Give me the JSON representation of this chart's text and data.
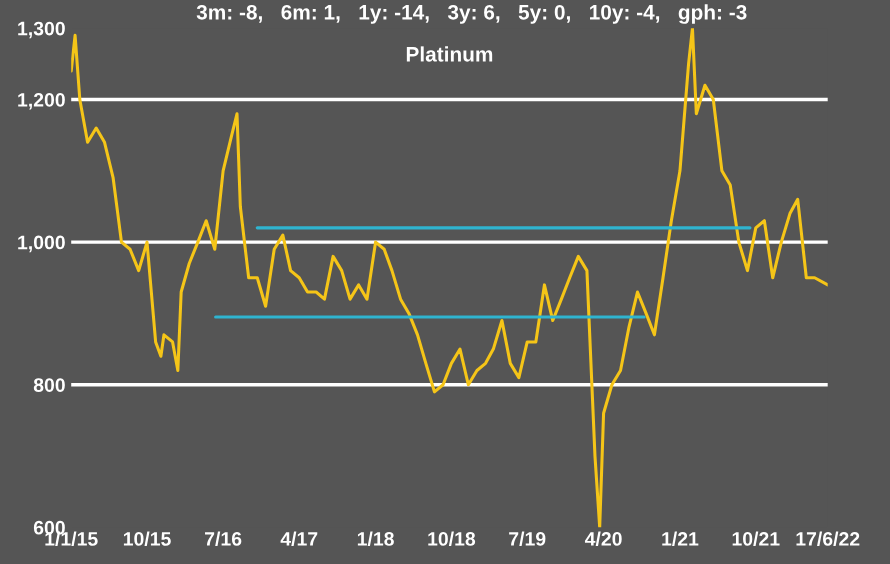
{
  "chart_data": {
    "type": "line",
    "title": "Platinum",
    "annotations": [
      "3m: -8,   6m: 1,   1y: -14,   3y: 6,   5y: 0,   10y: -4,   gph: -3"
    ],
    "xlim": [
      "2015-01-01",
      "2022-06-17"
    ],
    "ylim": [
      600,
      1300
    ],
    "xticks": [
      {
        "value": "2015-01-01",
        "label": "1/1/15"
      },
      {
        "value": "2015-10-01",
        "label": "10/15"
      },
      {
        "value": "2016-07-01",
        "label": "7/16"
      },
      {
        "value": "2017-04-01",
        "label": "4/17"
      },
      {
        "value": "2018-01-01",
        "label": "1/18"
      },
      {
        "value": "2018-10-01",
        "label": "10/18"
      },
      {
        "value": "2019-07-01",
        "label": "7/19"
      },
      {
        "value": "2020-04-01",
        "label": "4/20"
      },
      {
        "value": "2021-01-01",
        "label": "1/21"
      },
      {
        "value": "2021-10-01",
        "label": "10/21"
      },
      {
        "value": "2022-06-17",
        "label": "17/6/22"
      }
    ],
    "yticks": [
      {
        "value": 600,
        "label": "600"
      },
      {
        "value": 800,
        "label": "800"
      },
      {
        "value": 1000,
        "label": "1,000"
      },
      {
        "value": 1200,
        "label": "1,200"
      },
      {
        "value": 1300,
        "label": "1,300"
      }
    ],
    "ref_lines": [
      {
        "axis": "y",
        "value": 800,
        "color": "#ffffff"
      },
      {
        "axis": "y",
        "value": 1000,
        "color": "#ffffff"
      },
      {
        "axis": "y",
        "value": 1200,
        "color": "#ffffff"
      }
    ],
    "grid": false,
    "legend": false,
    "series": [
      {
        "color": "#f5c518",
        "x": [
          "2015-01-01",
          "2015-01-15",
          "2015-02-01",
          "2015-03-01",
          "2015-04-01",
          "2015-05-01",
          "2015-06-01",
          "2015-07-01",
          "2015-08-01",
          "2015-09-01",
          "2015-10-01",
          "2015-11-01",
          "2015-11-20",
          "2015-12-01",
          "2016-01-01",
          "2016-01-20",
          "2016-02-01",
          "2016-03-01",
          "2016-04-01",
          "2016-05-01",
          "2016-06-01",
          "2016-07-01",
          "2016-08-01",
          "2016-08-20",
          "2016-09-01",
          "2016-10-01",
          "2016-11-01",
          "2016-12-01",
          "2017-01-01",
          "2017-02-01",
          "2017-03-01",
          "2017-04-01",
          "2017-05-01",
          "2017-06-01",
          "2017-07-01",
          "2017-08-01",
          "2017-09-01",
          "2017-10-01",
          "2017-11-01",
          "2017-12-01",
          "2018-01-01",
          "2018-02-01",
          "2018-03-01",
          "2018-04-01",
          "2018-05-01",
          "2018-06-01",
          "2018-07-01",
          "2018-08-01",
          "2018-09-01",
          "2018-10-01",
          "2018-11-01",
          "2018-12-01",
          "2019-01-01",
          "2019-02-01",
          "2019-03-01",
          "2019-04-01",
          "2019-05-01",
          "2019-06-01",
          "2019-07-01",
          "2019-08-01",
          "2019-09-01",
          "2019-10-01",
          "2019-11-01",
          "2019-12-01",
          "2020-01-01",
          "2020-02-01",
          "2020-03-01",
          "2020-03-18",
          "2020-04-01",
          "2020-05-01",
          "2020-06-01",
          "2020-07-01",
          "2020-08-01",
          "2020-09-01",
          "2020-10-01",
          "2020-11-01",
          "2020-12-01",
          "2021-01-01",
          "2021-02-01",
          "2021-02-15",
          "2021-03-01",
          "2021-04-01",
          "2021-05-01",
          "2021-06-01",
          "2021-07-01",
          "2021-08-01",
          "2021-09-01",
          "2021-10-01",
          "2021-11-01",
          "2021-12-01",
          "2022-01-01",
          "2022-02-01",
          "2022-03-01",
          "2022-04-01",
          "2022-05-01",
          "2022-06-17"
        ],
        "values": [
          1240,
          1290,
          1200,
          1140,
          1160,
          1140,
          1090,
          1000,
          990,
          960,
          1000,
          860,
          840,
          870,
          860,
          820,
          930,
          970,
          1000,
          1030,
          990,
          1100,
          1150,
          1180,
          1050,
          950,
          950,
          910,
          990,
          1010,
          960,
          950,
          930,
          930,
          920,
          980,
          960,
          920,
          940,
          920,
          1000,
          990,
          960,
          920,
          900,
          870,
          830,
          790,
          800,
          830,
          850,
          800,
          820,
          830,
          850,
          890,
          830,
          810,
          860,
          860,
          940,
          890,
          920,
          950,
          980,
          960,
          700,
          600,
          760,
          800,
          820,
          880,
          930,
          900,
          870,
          950,
          1030,
          1100,
          1250,
          1300,
          1180,
          1220,
          1200,
          1100,
          1080,
          1000,
          960,
          1020,
          1030,
          950,
          1000,
          1040,
          1060,
          950,
          950,
          940
        ]
      },
      {
        "color": "#2fb4d0",
        "x": [
          "2016-11-01",
          "2021-09-10"
        ],
        "values": [
          1020,
          1020
        ]
      },
      {
        "color": "#2fb4d0",
        "x": [
          "2016-06-04",
          "2020-08-25"
        ],
        "values": [
          895,
          895
        ]
      }
    ]
  }
}
